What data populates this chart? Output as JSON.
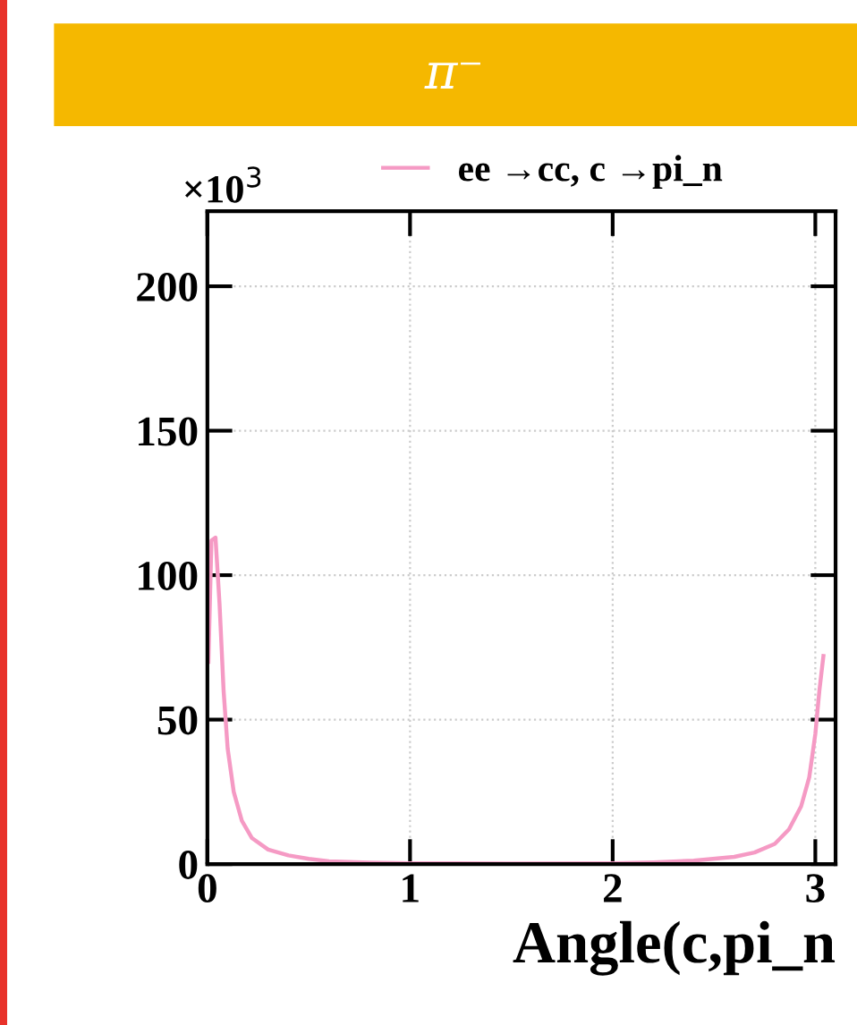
{
  "chart_data": {
    "type": "line",
    "title": "π⁻",
    "xlabel": "Angle(c,pi_n",
    "annotations": [
      "×10$^{3}$"
    ],
    "legend": "top",
    "grid": true,
    "line_style": "solid",
    "marker": "none",
    "xlim": [
      0,
      3.1
    ],
    "xticks": [
      0,
      1,
      2,
      3
    ],
    "ylim": [
      0,
      226
    ],
    "yticks": [
      0,
      50,
      100,
      150,
      200
    ],
    "series": [
      {
        "name": "ee →cc, c →pi_n",
        "color": "#f59ac4",
        "x": [
          0.005,
          0.02,
          0.04,
          0.06,
          0.08,
          0.1,
          0.13,
          0.17,
          0.22,
          0.3,
          0.4,
          0.5,
          0.6,
          0.8,
          1.0,
          1.5,
          2.0,
          2.2,
          2.4,
          2.6,
          2.7,
          2.8,
          2.87,
          2.93,
          2.97,
          3.0,
          3.02,
          3.04
        ],
        "values": [
          70,
          112,
          113,
          90,
          60,
          40,
          25,
          15,
          9,
          5,
          3,
          1.8,
          1,
          0.5,
          0.3,
          0.2,
          0.3,
          0.6,
          1.2,
          2.5,
          4,
          7,
          12,
          20,
          30,
          45,
          60,
          72
        ]
      }
    ]
  }
}
